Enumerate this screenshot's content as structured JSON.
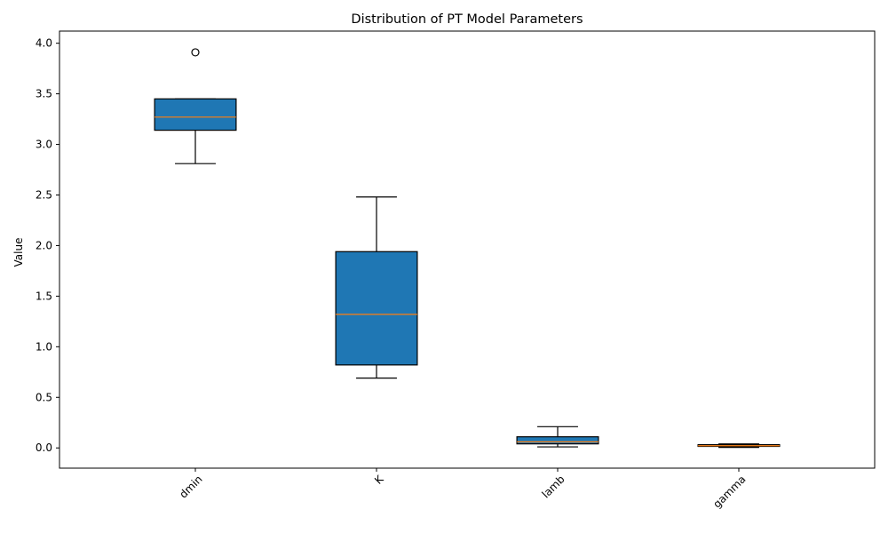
{
  "chart_data": {
    "type": "box",
    "title": "Distribution of PT Model Parameters",
    "xlabel": "",
    "ylabel": "Value",
    "ylim": [
      -0.2,
      4.12
    ],
    "yticks": [
      "0.0",
      "0.5",
      "1.0",
      "1.5",
      "2.0",
      "2.5",
      "3.0",
      "3.5",
      "4.0"
    ],
    "xtick_rotation_deg": 45,
    "grid": false,
    "legend": "none",
    "box_color": "#1f77b4",
    "median_color": "#ff7f0e",
    "categories": [
      "dmin",
      "K",
      "lamb",
      "gamma"
    ],
    "boxes": [
      {
        "label": "dmin",
        "whisker_low": 2.81,
        "q1": 3.14,
        "median": 3.27,
        "q3": 3.45,
        "whisker_high": 3.45,
        "outliers": [
          3.91
        ]
      },
      {
        "label": "K",
        "whisker_low": 0.69,
        "q1": 0.82,
        "median": 1.32,
        "q3": 1.94,
        "whisker_high": 2.48,
        "outliers": []
      },
      {
        "label": "lamb",
        "whisker_low": 0.01,
        "q1": 0.04,
        "median": 0.06,
        "q3": 0.11,
        "whisker_high": 0.21,
        "outliers": []
      },
      {
        "label": "gamma",
        "whisker_low": 0.005,
        "q1": 0.015,
        "median": 0.022,
        "q3": 0.032,
        "whisker_high": 0.04,
        "outliers": []
      }
    ]
  }
}
